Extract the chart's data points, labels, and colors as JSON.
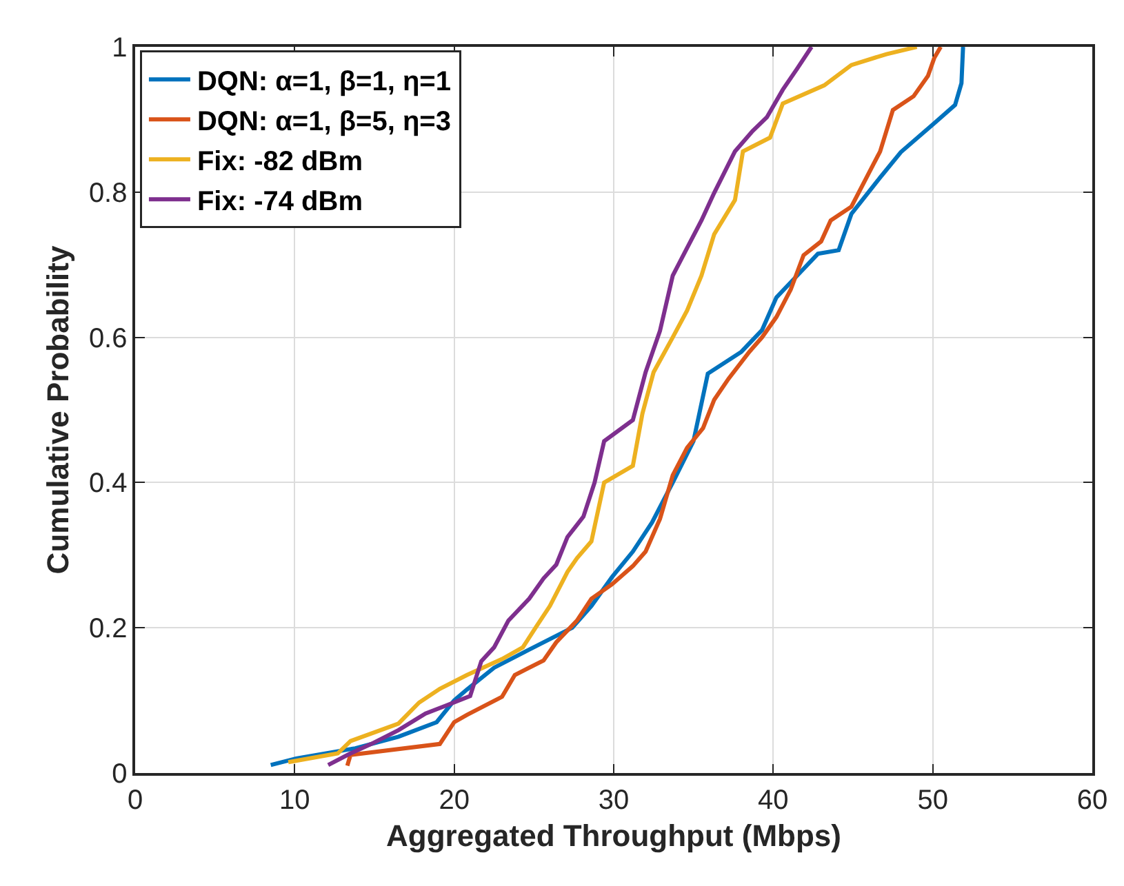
{
  "chart_data": {
    "type": "line",
    "xlabel": "Aggregated Throughput (Mbps)",
    "ylabel": "Cumulative Probability",
    "xlim": [
      0,
      60
    ],
    "xticks": [
      0,
      10,
      20,
      30,
      40,
      50,
      60
    ],
    "ylim": [
      0,
      1
    ],
    "yticks": [
      0,
      0.2,
      0.4,
      0.6,
      0.8,
      1
    ],
    "grid": true,
    "legend": "top left",
    "marker": "none",
    "line_style": "solid",
    "series": [
      {
        "name": "DQN: α=1, β=1, η=1",
        "color": "#0072bd",
        "x": [
          8.5,
          10.1,
          13.8,
          16.5,
          18.9,
          20,
          20.8,
          22.5,
          24.7,
          27.4,
          28.6,
          29.9,
          31.2,
          32.4,
          33.7,
          35,
          35.9,
          38,
          39.3,
          40.2,
          41.5,
          42.8,
          44.1,
          44.9,
          46.7,
          48,
          50.1,
          51.4,
          51.8,
          51.9
        ],
        "values": [
          0.011,
          0.02,
          0.034,
          0.05,
          0.07,
          0.1,
          0.115,
          0.145,
          0.17,
          0.2,
          0.23,
          0.27,
          0.305,
          0.345,
          0.4,
          0.457,
          0.55,
          0.58,
          0.61,
          0.655,
          0.685,
          0.715,
          0.72,
          0.77,
          0.82,
          0.855,
          0.895,
          0.92,
          0.95,
          1.0
        ]
      },
      {
        "name": "DQN: α=1, β=5, η=3",
        "color": "#d95319",
        "x": [
          13.3,
          13.5,
          19.1,
          20,
          20.8,
          23,
          23.8,
          25.6,
          26.4,
          27.7,
          28.6,
          29.9,
          31.2,
          32,
          32.9,
          33.7,
          34.6,
          35.6,
          36.3,
          37.2,
          38.5,
          39.3,
          40.2,
          41.1,
          41.9,
          43,
          43.6,
          44.9,
          46.7,
          47.5,
          48.8,
          49.7,
          50.1,
          50.5
        ],
        "values": [
          0.01,
          0.025,
          0.04,
          0.07,
          0.08,
          0.105,
          0.135,
          0.155,
          0.18,
          0.21,
          0.24,
          0.26,
          0.285,
          0.305,
          0.35,
          0.41,
          0.448,
          0.475,
          0.514,
          0.543,
          0.58,
          0.6,
          0.628,
          0.666,
          0.713,
          0.732,
          0.761,
          0.78,
          0.856,
          0.913,
          0.932,
          0.96,
          0.985,
          1.0
        ]
      },
      {
        "name": "Fix: -82 dBm",
        "color": "#edb120",
        "x": [
          9.6,
          12.7,
          13.5,
          16.5,
          17.8,
          19.1,
          20.8,
          23,
          24.3,
          25.1,
          26,
          27.1,
          27.7,
          28.6,
          29.4,
          31.2,
          31.8,
          32.5,
          33.7,
          34.6,
          35.5,
          36.3,
          37.6,
          38.1,
          39.8,
          40.6,
          43.2,
          44.9,
          47.1,
          49
        ],
        "values": [
          0.015,
          0.027,
          0.044,
          0.068,
          0.097,
          0.116,
          0.135,
          0.157,
          0.173,
          0.2,
          0.23,
          0.277,
          0.296,
          0.319,
          0.4,
          0.423,
          0.495,
          0.552,
          0.6,
          0.637,
          0.685,
          0.742,
          0.789,
          0.856,
          0.875,
          0.922,
          0.947,
          0.975,
          0.99,
          1.0
        ]
      },
      {
        "name": "Fix: -74 dBm",
        "color": "#7e2f8e",
        "x": [
          12.1,
          13.5,
          14.8,
          16.5,
          18.2,
          19.5,
          21,
          21.7,
          22.5,
          23.4,
          24.7,
          25.6,
          26.4,
          27.1,
          28.1,
          28.8,
          29.4,
          31.2,
          32,
          32.9,
          33.7,
          34.6,
          35.5,
          36.3,
          37.6,
          38.7,
          39.6,
          40.6,
          41.5,
          42.4
        ],
        "values": [
          0.011,
          0.027,
          0.04,
          0.059,
          0.082,
          0.093,
          0.106,
          0.154,
          0.173,
          0.21,
          0.24,
          0.268,
          0.287,
          0.325,
          0.353,
          0.4,
          0.457,
          0.486,
          0.552,
          0.609,
          0.685,
          0.723,
          0.761,
          0.799,
          0.856,
          0.884,
          0.903,
          0.941,
          0.97,
          1.0
        ]
      }
    ]
  }
}
